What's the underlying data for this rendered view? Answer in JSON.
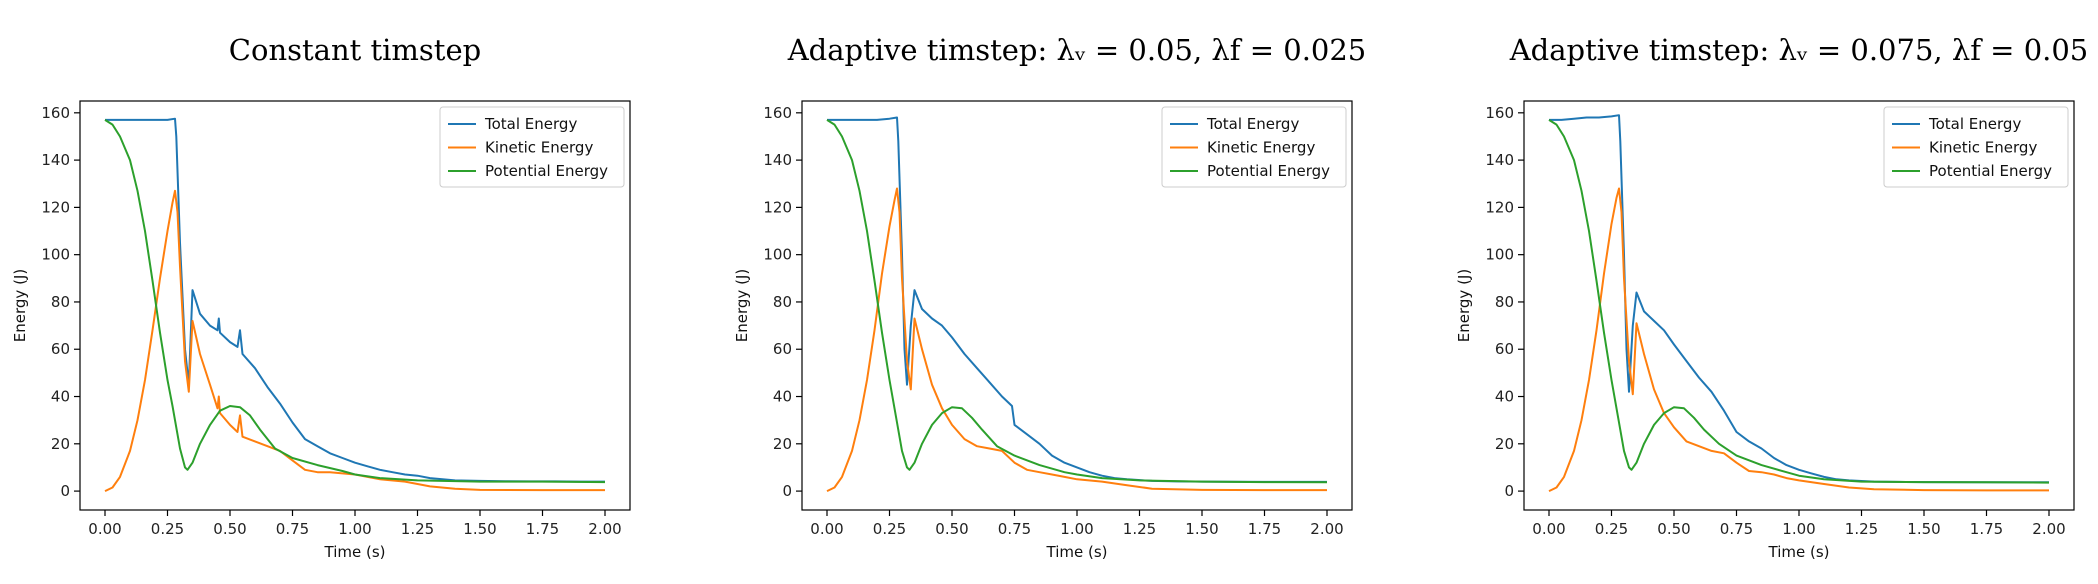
{
  "figure": {
    "colors": {
      "Total Energy": "#1f77b4",
      "Kinetic Energy": "#ff7f0e",
      "Potential Energy": "#2ca02c"
    }
  },
  "chart_data": [
    {
      "type": "line",
      "title": "Constant timstep",
      "xlabel": "Time (s)",
      "ylabel": "Energy (J)",
      "xlim": [
        -0.1,
        2.1
      ],
      "ylim": [
        -8,
        165
      ],
      "xticks": [
        "0.00",
        "0.25",
        "0.50",
        "0.75",
        "1.00",
        "1.25",
        "1.50",
        "1.75",
        "2.00"
      ],
      "yticks": [
        "0",
        "20",
        "40",
        "60",
        "80",
        "100",
        "120",
        "140",
        "160"
      ],
      "legend": "top-right",
      "grid": false,
      "series": [
        {
          "name": "Total Energy",
          "x": [
            0,
            0.05,
            0.1,
            0.15,
            0.2,
            0.25,
            0.28,
            0.285,
            0.3,
            0.32,
            0.335,
            0.35,
            0.38,
            0.42,
            0.45,
            0.455,
            0.46,
            0.5,
            0.53,
            0.54,
            0.55,
            0.6,
            0.65,
            0.7,
            0.75,
            0.8,
            0.85,
            0.9,
            0.95,
            1.0,
            1.05,
            1.1,
            1.15,
            1.2,
            1.25,
            1.3,
            1.35,
            1.4,
            1.5,
            1.6,
            1.7,
            1.8,
            1.9,
            2.0
          ],
          "y": [
            157,
            157,
            157,
            157,
            157,
            157,
            157.5,
            150,
            105,
            60,
            45,
            85,
            75,
            70,
            68,
            73,
            67,
            63,
            61,
            68,
            58,
            52,
            44,
            37,
            29,
            22,
            19,
            16,
            14,
            12,
            10.5,
            9,
            8,
            7,
            6.5,
            5.5,
            5,
            4.5,
            4.3,
            4.2,
            4.1,
            4.1,
            4.0,
            4.0
          ]
        },
        {
          "name": "Kinetic Energy",
          "x": [
            0,
            0.03,
            0.06,
            0.1,
            0.13,
            0.16,
            0.19,
            0.22,
            0.25,
            0.27,
            0.28,
            0.29,
            0.3,
            0.32,
            0.335,
            0.35,
            0.38,
            0.42,
            0.45,
            0.455,
            0.46,
            0.5,
            0.53,
            0.54,
            0.55,
            0.6,
            0.65,
            0.7,
            0.75,
            0.8,
            0.85,
            0.9,
            0.95,
            1.0,
            1.1,
            1.2,
            1.3,
            1.4,
            1.5,
            1.75,
            2.0
          ],
          "y": [
            0,
            1.5,
            6,
            17,
            30,
            47,
            68,
            90,
            110,
            122,
            127,
            118,
            95,
            55,
            42,
            72,
            58,
            45,
            35,
            40,
            33,
            28,
            25,
            32,
            23,
            21,
            19,
            17,
            13,
            9,
            8,
            8,
            7.5,
            7,
            5,
            4,
            2,
            1,
            0.5,
            0.4,
            0.4
          ]
        },
        {
          "name": "Potential Energy",
          "x": [
            0,
            0.03,
            0.06,
            0.1,
            0.13,
            0.16,
            0.19,
            0.22,
            0.25,
            0.27,
            0.28,
            0.3,
            0.32,
            0.33,
            0.35,
            0.38,
            0.42,
            0.46,
            0.5,
            0.54,
            0.58,
            0.62,
            0.68,
            0.75,
            0.85,
            0.95,
            1.0,
            1.1,
            1.25,
            1.5,
            1.75,
            2.0
          ],
          "y": [
            157,
            155,
            150,
            140,
            127,
            110,
            89,
            67,
            47,
            36,
            30,
            18,
            10,
            9,
            12,
            20,
            28,
            34,
            36,
            35.5,
            32,
            26,
            18,
            14,
            11,
            8.5,
            7,
            5.5,
            4.5,
            4,
            4,
            3.8
          ]
        }
      ]
    },
    {
      "type": "line",
      "title": "Adaptive timstep: λᵥ = 0.05,  λf  = 0.025",
      "xlabel": "Time (s)",
      "ylabel": "Energy (J)",
      "xlim": [
        -0.1,
        2.1
      ],
      "ylim": [
        -8,
        165
      ],
      "xticks": [
        "0.00",
        "0.25",
        "0.50",
        "0.75",
        "1.00",
        "1.25",
        "1.50",
        "1.75",
        "2.00"
      ],
      "yticks": [
        "0",
        "20",
        "40",
        "60",
        "80",
        "100",
        "120",
        "140",
        "160"
      ],
      "legend": "top-right",
      "grid": false,
      "series": [
        {
          "name": "Total Energy",
          "x": [
            0,
            0.05,
            0.1,
            0.15,
            0.2,
            0.25,
            0.28,
            0.285,
            0.3,
            0.31,
            0.32,
            0.335,
            0.35,
            0.38,
            0.42,
            0.46,
            0.5,
            0.55,
            0.6,
            0.65,
            0.7,
            0.74,
            0.75,
            0.8,
            0.85,
            0.9,
            0.95,
            1.0,
            1.05,
            1.1,
            1.15,
            1.2,
            1.3,
            1.4,
            1.5,
            1.75,
            2.0
          ],
          "y": [
            157,
            157,
            157,
            157,
            157,
            157.5,
            158,
            148,
            100,
            60,
            45,
            70,
            85,
            77,
            73,
            70,
            65,
            58,
            52,
            46,
            40,
            36,
            28,
            24,
            20,
            15,
            12,
            10,
            8,
            6.5,
            5.5,
            5,
            4.3,
            4.1,
            4.0,
            3.9,
            3.9
          ]
        },
        {
          "name": "Kinetic Energy",
          "x": [
            0,
            0.03,
            0.06,
            0.1,
            0.13,
            0.16,
            0.19,
            0.22,
            0.25,
            0.27,
            0.28,
            0.29,
            0.3,
            0.32,
            0.335,
            0.35,
            0.38,
            0.42,
            0.46,
            0.5,
            0.55,
            0.6,
            0.65,
            0.7,
            0.75,
            0.8,
            0.85,
            0.9,
            0.95,
            1.0,
            1.1,
            1.2,
            1.3,
            1.5,
            1.75,
            2.0
          ],
          "y": [
            0,
            1.5,
            6,
            17,
            30,
            47,
            68,
            92,
            112,
            123,
            128,
            118,
            90,
            55,
            43,
            73,
            60,
            45,
            35,
            28,
            22,
            19,
            18,
            17,
            12,
            9,
            8,
            7,
            6,
            5,
            4,
            2.5,
            1,
            0.5,
            0.4,
            0.4
          ]
        },
        {
          "name": "Potential Energy",
          "x": [
            0,
            0.03,
            0.06,
            0.1,
            0.13,
            0.16,
            0.19,
            0.22,
            0.25,
            0.27,
            0.28,
            0.3,
            0.32,
            0.33,
            0.35,
            0.38,
            0.42,
            0.46,
            0.5,
            0.54,
            0.58,
            0.62,
            0.68,
            0.75,
            0.85,
            0.95,
            1.0,
            1.1,
            1.25,
            1.5,
            1.75,
            2.0
          ],
          "y": [
            157,
            155,
            150,
            140,
            127,
            110,
            89,
            67,
            47,
            35,
            29,
            17,
            10,
            9,
            12,
            20,
            28,
            33,
            35.5,
            35,
            31,
            26,
            19,
            15,
            11,
            8,
            7,
            5.5,
            4.5,
            4,
            3.8,
            3.7
          ]
        }
      ]
    },
    {
      "type": "line",
      "title": "Adaptive timstep: λᵥ = 0.075,  λf  = 0.05",
      "xlabel": "Time (s)",
      "ylabel": "Energy (J)",
      "xlim": [
        -0.1,
        2.1
      ],
      "ylim": [
        -8,
        165
      ],
      "xticks": [
        "0.00",
        "0.25",
        "0.50",
        "0.75",
        "1.00",
        "1.25",
        "1.50",
        "1.75",
        "2.00"
      ],
      "yticks": [
        "0",
        "20",
        "40",
        "60",
        "80",
        "100",
        "120",
        "140",
        "160"
      ],
      "legend": "top-right",
      "grid": false,
      "series": [
        {
          "name": "Total Energy",
          "x": [
            0,
            0.05,
            0.1,
            0.15,
            0.2,
            0.25,
            0.28,
            0.285,
            0.3,
            0.31,
            0.32,
            0.335,
            0.35,
            0.38,
            0.42,
            0.46,
            0.5,
            0.55,
            0.6,
            0.65,
            0.7,
            0.75,
            0.8,
            0.85,
            0.9,
            0.95,
            1.0,
            1.05,
            1.1,
            1.15,
            1.2,
            1.3,
            1.4,
            1.5,
            1.75,
            2.0
          ],
          "y": [
            157,
            157,
            157.5,
            158,
            158,
            158.5,
            159,
            148,
            100,
            60,
            42,
            70,
            84,
            76,
            72,
            68,
            62,
            55,
            48,
            42,
            34,
            25,
            21,
            18,
            14,
            11,
            9,
            7.5,
            6,
            5,
            4.5,
            4,
            3.9,
            3.8,
            3.7,
            3.7
          ]
        },
        {
          "name": "Kinetic Energy",
          "x": [
            0,
            0.03,
            0.06,
            0.1,
            0.13,
            0.16,
            0.19,
            0.22,
            0.25,
            0.27,
            0.28,
            0.29,
            0.3,
            0.32,
            0.335,
            0.35,
            0.38,
            0.42,
            0.46,
            0.5,
            0.55,
            0.6,
            0.65,
            0.7,
            0.75,
            0.8,
            0.85,
            0.9,
            0.95,
            1.0,
            1.1,
            1.2,
            1.3,
            1.5,
            1.75,
            2.0
          ],
          "y": [
            0,
            1.5,
            6,
            17,
            30,
            47,
            68,
            92,
            113,
            124,
            128,
            118,
            90,
            55,
            41,
            71,
            58,
            43,
            33,
            27,
            21,
            19,
            17,
            16,
            12,
            8.5,
            8,
            7,
            5.5,
            4.5,
            3,
            1.5,
            0.8,
            0.4,
            0.3,
            0.3
          ]
        },
        {
          "name": "Potential Energy",
          "x": [
            0,
            0.03,
            0.06,
            0.1,
            0.13,
            0.16,
            0.19,
            0.22,
            0.25,
            0.27,
            0.28,
            0.3,
            0.32,
            0.33,
            0.35,
            0.38,
            0.42,
            0.46,
            0.5,
            0.54,
            0.58,
            0.62,
            0.68,
            0.75,
            0.85,
            0.95,
            1.0,
            1.1,
            1.25,
            1.5,
            1.75,
            2.0
          ],
          "y": [
            157,
            155,
            150,
            140,
            127,
            110,
            89,
            67,
            47,
            35,
            29,
            17,
            10,
            9,
            12,
            20,
            28,
            33,
            35.5,
            35,
            31,
            26,
            20,
            15,
            11,
            8,
            6.5,
            5,
            4,
            3.8,
            3.7,
            3.6
          ]
        }
      ]
    }
  ]
}
